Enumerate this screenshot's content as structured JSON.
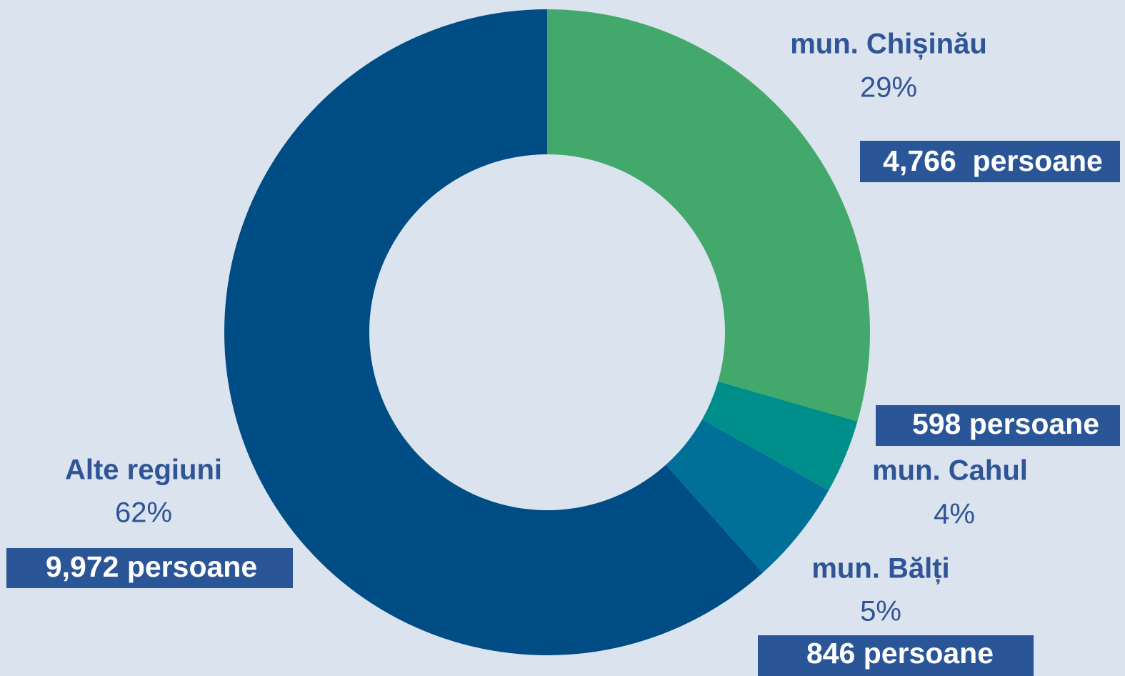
{
  "chart_data": {
    "type": "donut",
    "categories": [
      "mun. Chișinău",
      "mun. Cahul",
      "mun. Bălți",
      "Alte regiuni"
    ],
    "values": [
      4766,
      598,
      846,
      9972
    ],
    "value_labels": [
      "4,766  persoane",
      "598 persoane",
      "846 persoane",
      "9,972 persoane"
    ],
    "shares": [
      29,
      4,
      5,
      62
    ],
    "share_labels": [
      "29%",
      "4%",
      "5%",
      "62%"
    ],
    "colors": [
      "#43a86b",
      "#008e8a",
      "#007098",
      "#004c84"
    ]
  }
}
